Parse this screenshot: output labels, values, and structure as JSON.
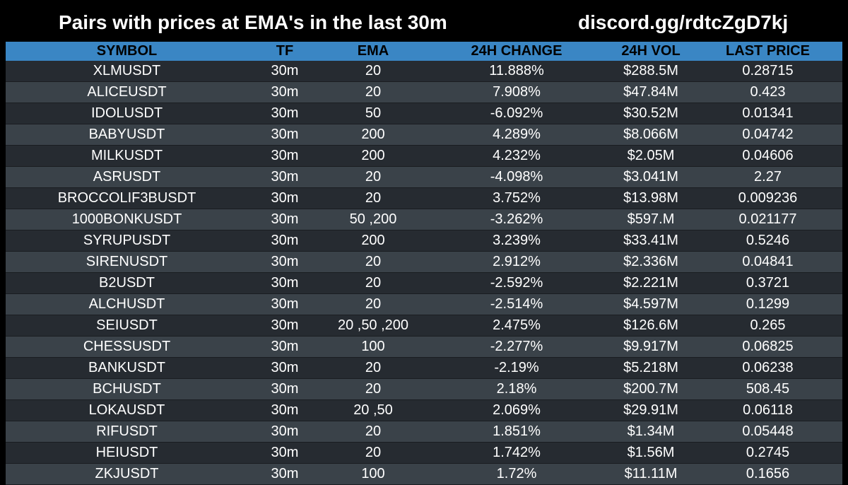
{
  "header": {
    "title": "Pairs with prices at EMA's in the last 30m",
    "link": "discord.gg/rdtcZgD7kj"
  },
  "colors": {
    "background": "#000000",
    "header_row": "#3a86c4",
    "row_dark": "#262b31",
    "row_light": "#3a4249",
    "text": "#ffffff"
  },
  "table": {
    "columns": [
      "SYMBOL",
      "TF",
      "EMA",
      "24H CHANGE",
      "24H VOL",
      "LAST PRICE"
    ],
    "rows": [
      [
        "XLMUSDT",
        "30m",
        "20",
        "11.888%",
        "$288.5M",
        "0.28715"
      ],
      [
        "ALICEUSDT",
        "30m",
        "20",
        "7.908%",
        "$47.84M",
        "0.423"
      ],
      [
        "IDOLUSDT",
        "30m",
        "50",
        "-6.092%",
        "$30.52M",
        "0.01341"
      ],
      [
        "BABYUSDT",
        "30m",
        "200",
        "4.289%",
        "$8.066M",
        "0.04742"
      ],
      [
        "MILKUSDT",
        "30m",
        "200",
        "4.232%",
        "$2.05M",
        "0.04606"
      ],
      [
        "ASRUSDT",
        "30m",
        "20",
        "-4.098%",
        "$3.041M",
        "2.27"
      ],
      [
        "BROCCOLIF3BUSDT",
        "30m",
        "20",
        "3.752%",
        "$13.98M",
        "0.009236"
      ],
      [
        "1000BONKUSDT",
        "30m",
        "50 ,200",
        "-3.262%",
        "$597.M",
        "0.021177"
      ],
      [
        "SYRUPUSDT",
        "30m",
        "200",
        "3.239%",
        "$33.41M",
        "0.5246"
      ],
      [
        "SIRENUSDT",
        "30m",
        "20",
        "2.912%",
        "$2.336M",
        "0.04841"
      ],
      [
        "B2USDT",
        "30m",
        "20",
        "-2.592%",
        "$2.221M",
        "0.3721"
      ],
      [
        "ALCHUSDT",
        "30m",
        "20",
        "-2.514%",
        "$4.597M",
        "0.1299"
      ],
      [
        "SEIUSDT",
        "30m",
        "20 ,50 ,200",
        "2.475%",
        "$126.6M",
        "0.265"
      ],
      [
        "CHESSUSDT",
        "30m",
        "100",
        "-2.277%",
        "$9.917M",
        "0.06825"
      ],
      [
        "BANKUSDT",
        "30m",
        "20",
        "-2.19%",
        "$5.218M",
        "0.06238"
      ],
      [
        "BCHUSDT",
        "30m",
        "20",
        "2.18%",
        "$200.7M",
        "508.45"
      ],
      [
        "LOKAUSDT",
        "30m",
        "20 ,50",
        "2.069%",
        "$29.91M",
        "0.06118"
      ],
      [
        "RIFUSDT",
        "30m",
        "20",
        "1.851%",
        "$1.34M",
        "0.05448"
      ],
      [
        "HEIUSDT",
        "30m",
        "20",
        "1.742%",
        "$1.56M",
        "0.2745"
      ],
      [
        "ZKJUSDT",
        "30m",
        "100",
        "1.72%",
        "$11.11M",
        "0.1656"
      ]
    ]
  }
}
